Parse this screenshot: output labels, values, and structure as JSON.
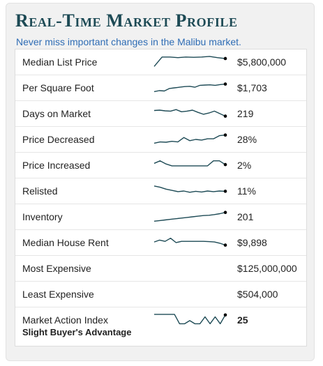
{
  "header": {
    "title": "Real-Time Market Profile",
    "subtitle": "Never miss important changes in the Malibu market."
  },
  "rows": [
    {
      "label": "Median List Price",
      "value": "$5,800,000",
      "spark": [
        0.15,
        0.9,
        0.9,
        0.85,
        0.9,
        0.88,
        0.9,
        0.95,
        0.85,
        0.78
      ]
    },
    {
      "label": "Per Square Foot",
      "value": "$1,703",
      "spark": [
        0.2,
        0.28,
        0.25,
        0.45,
        0.5,
        0.55,
        0.6,
        0.62,
        0.55,
        0.7,
        0.72,
        0.74,
        0.7,
        0.76,
        0.8
      ]
    },
    {
      "label": "Days on Market",
      "value": "219",
      "spark": [
        0.75,
        0.78,
        0.72,
        0.7,
        0.82,
        0.65,
        0.7,
        0.78,
        0.6,
        0.45,
        0.55,
        0.7,
        0.5,
        0.3
      ]
    },
    {
      "label": "Price Decreased",
      "value": "28%",
      "spark": [
        0.2,
        0.3,
        0.28,
        0.35,
        0.3,
        0.65,
        0.4,
        0.5,
        0.45,
        0.55,
        0.55,
        0.8,
        0.85
      ]
    },
    {
      "label": "Price Increased",
      "value": "2%",
      "spark": [
        0.65,
        0.85,
        0.6,
        0.45,
        0.45,
        0.45,
        0.45,
        0.45,
        0.45,
        0.45,
        0.85,
        0.85,
        0.55
      ]
    },
    {
      "label": "Relisted",
      "value": "11%",
      "spark": [
        0.9,
        0.8,
        0.65,
        0.55,
        0.45,
        0.5,
        0.4,
        0.48,
        0.42,
        0.5,
        0.45,
        0.5,
        0.48
      ]
    },
    {
      "label": "Inventory",
      "value": "201",
      "spark": [
        0.15,
        0.2,
        0.25,
        0.3,
        0.35,
        0.4,
        0.45,
        0.5,
        0.55,
        0.6,
        0.62,
        0.68,
        0.75,
        0.85
      ]
    },
    {
      "label": "Median House Rent",
      "value": "$9,898",
      "spark": [
        0.55,
        0.7,
        0.6,
        0.85,
        0.5,
        0.6,
        0.6,
        0.6,
        0.6,
        0.6,
        0.58,
        0.55,
        0.45,
        0.3
      ]
    },
    {
      "label": "Most Expensive",
      "value": "$125,000,000",
      "spark": []
    },
    {
      "label": "Least Expensive",
      "value": "$504,000",
      "spark": []
    }
  ],
  "market_action": {
    "label": "Market Action Index",
    "status": "Slight Buyer's Advantage",
    "value": "25",
    "spark": [
      0.95,
      0.95,
      0.95,
      0.95,
      0.95,
      0.2,
      0.2,
      0.45,
      0.2,
      0.2,
      0.75,
      0.2,
      0.75,
      0.2,
      0.9
    ]
  },
  "colors": {
    "title": "#1d4a55",
    "subtitle": "#2f6db5",
    "sparkline": "#1d4a55",
    "panel": "#f1f1f1"
  }
}
